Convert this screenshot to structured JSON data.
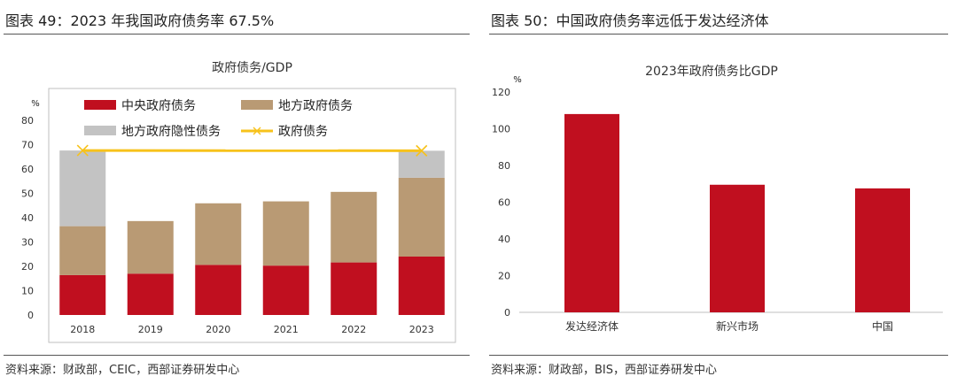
{
  "left": {
    "figure_title": "图表 49：2023 年我国政府债务率 67.5%",
    "source": "资料来源：财政部，CEIC，西部证券研发中心"
  },
  "right": {
    "figure_title": "图表 50：中国政府债务率远低于发达经济体",
    "source": "资料来源：财政部，BIS，西部证券研发中心"
  },
  "chart_data": [
    {
      "type": "bar",
      "stacked": true,
      "title": "政府债务/GDP",
      "ylabel": "%",
      "xlabel": "",
      "ylim": [
        0,
        80
      ],
      "yticks": [
        0,
        10,
        20,
        30,
        40,
        50,
        60,
        70,
        80
      ],
      "grid": false,
      "legend": "top-left",
      "categories": [
        "2018",
        "2019",
        "2020",
        "2021",
        "2022",
        "2023"
      ],
      "series": [
        {
          "name": "中央政府债务",
          "type": "bar",
          "color": "#c00f1f",
          "values": [
            16.4,
            17.0,
            20.6,
            20.3,
            21.6,
            24.0
          ]
        },
        {
          "name": "地方政府债务",
          "type": "bar",
          "color": "#b99a74",
          "values": [
            20.1,
            21.6,
            25.3,
            26.4,
            29.0,
            32.4
          ]
        },
        {
          "name": "地方政府隐性债务",
          "type": "bar",
          "color": "#c3c3c3",
          "values": [
            31.1,
            0,
            0,
            0,
            0,
            11.1
          ]
        },
        {
          "name": "政府债务",
          "type": "line",
          "color": "#f7c21b",
          "points": [
            {
              "x": "2018",
              "y": 67.6
            },
            {
              "x": "2023",
              "y": 67.5
            }
          ]
        }
      ]
    },
    {
      "type": "bar",
      "title": "2023年政府债务比GDP",
      "ylabel": "%",
      "xlabel": "",
      "ylim": [
        0,
        120
      ],
      "yticks": [
        0,
        20,
        40,
        60,
        80,
        100,
        120
      ],
      "grid": false,
      "categories": [
        "发达经济体",
        "新兴市场",
        "中国"
      ],
      "values": [
        108,
        69.5,
        67.5
      ],
      "color": "#c00f1f"
    }
  ]
}
